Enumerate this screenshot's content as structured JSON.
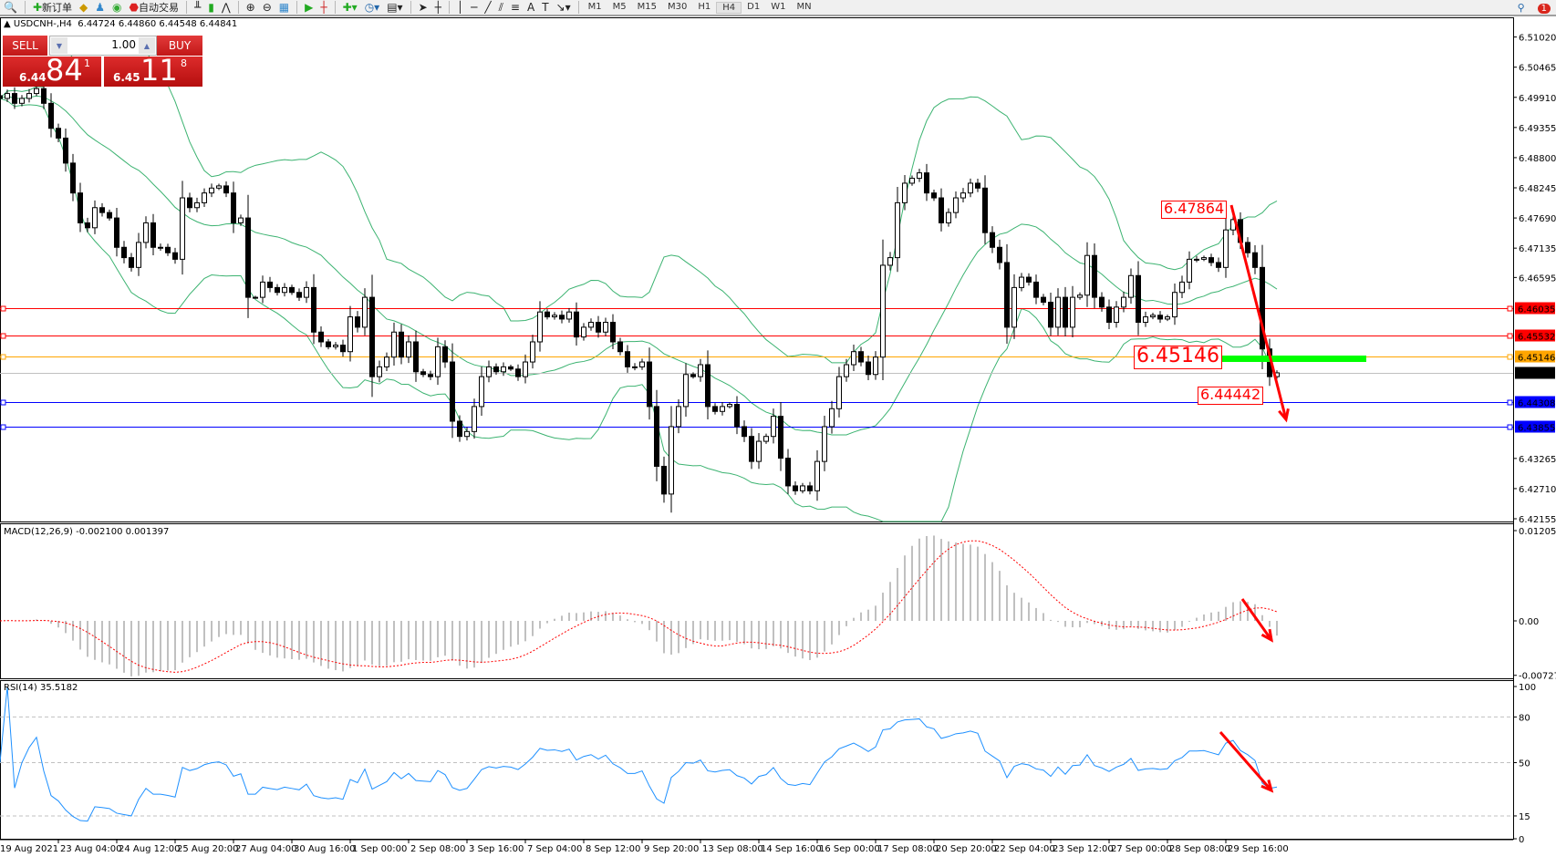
{
  "toolbar": {
    "new_order_label": "新订单",
    "autotrading_label": "自动交易",
    "timeframes": [
      "M1",
      "M5",
      "M15",
      "M30",
      "H1",
      "H4",
      "D1",
      "W1",
      "MN"
    ],
    "active_timeframe": "H4",
    "notification_count": "1"
  },
  "header": {
    "symbol": "USDCNH-,H4",
    "open": "6.44724",
    "high": "6.44860",
    "low": "6.44548",
    "close": "6.44841"
  },
  "trade_panel": {
    "sell_label": "SELL",
    "buy_label": "BUY",
    "lots": "1.00",
    "sell_price": {
      "prefix": "6.44",
      "big": "84",
      "sup": "1"
    },
    "buy_price": {
      "prefix": "6.45",
      "big": "11",
      "sup": "8"
    }
  },
  "price_axis": {
    "ticks": [
      "6.51020",
      "6.50465",
      "6.49910",
      "6.49355",
      "6.48800",
      "6.48245",
      "6.47690",
      "6.47135",
      "6.46595",
      "6.43265",
      "6.42710",
      "6.42155"
    ],
    "levels": [
      {
        "value": "6.46035",
        "color": "#ff0000"
      },
      {
        "value": "6.45532",
        "color": "#ff0000"
      },
      {
        "value": "6.45146",
        "color": "#ffa500"
      },
      {
        "value": "6.44841",
        "color": "#000000",
        "current": true
      },
      {
        "value": "6.44308",
        "color": "#0000ff"
      },
      {
        "value": "6.43855",
        "color": "#0000ff"
      }
    ]
  },
  "annotations": {
    "high_label": "6.47864",
    "support_label": "6.45146",
    "low_label": "6.44442"
  },
  "macd": {
    "title": "MACD(12,26,9) -0.002100 0.001397",
    "ticks": [
      "0.012053",
      "0.00",
      "-0.007272"
    ]
  },
  "rsi": {
    "title": "RSI(14) 35.5182",
    "ticks": [
      "100",
      "80",
      "50",
      "15",
      "0"
    ]
  },
  "time_axis": [
    "19 Aug 2021",
    "23 Aug 04:00",
    "24 Aug 12:00",
    "25 Aug 20:00",
    "27 Aug 04:00",
    "30 Aug 16:00",
    "1 Sep 00:00",
    "2 Sep 08:00",
    "3 Sep 16:00",
    "7 Sep 04:00",
    "8 Sep 12:00",
    "9 Sep 20:00",
    "13 Sep 08:00",
    "14 Sep 16:00",
    "16 Sep 00:00",
    "17 Sep 08:00",
    "20 Sep 20:00",
    "22 Sep 04:00",
    "23 Sep 12:00",
    "27 Sep 00:00",
    "28 Sep 08:00",
    "29 Sep 16:00"
  ],
  "colors": {
    "bollinger": "#3cb371",
    "macd_hist": "#c0c0c0",
    "macd_signal": "#ff0000",
    "rsi_line": "#1e90ff",
    "arrow": "#ff0000",
    "zone": "#00ff00"
  },
  "chart_data": {
    "type": "candlestick",
    "symbol": "USDCNH",
    "timeframe": "H4",
    "ylim": [
      6.42155,
      6.5102
    ],
    "indicators": [
      "Bollinger Bands",
      "MACD(12,26,9)",
      "RSI(14)"
    ],
    "closes": [
      6.4989,
      6.4998,
      6.498,
      6.4989,
      6.4998,
      6.5007,
      6.498,
      6.4934,
      6.4916,
      6.487,
      6.4815,
      6.476,
      6.4751,
      6.4788,
      6.4779,
      6.4769,
      6.4715,
      6.4696,
      6.4678,
      6.4724,
      6.476,
      6.4715,
      6.4715,
      6.4705,
      6.4693,
      6.4806,
      6.4788,
      6.4797,
      6.4815,
      6.4824,
      6.4828,
      6.4815,
      6.476,
      6.4769,
      6.4623,
      6.4623,
      6.4651,
      6.4641,
      6.4632,
      6.4641,
      6.4632,
      6.4623,
      6.4641,
      6.4559,
      6.4541,
      6.4532,
      6.4535,
      6.4523,
      6.4587,
      6.4568,
      6.4623,
      6.4477,
      6.4495,
      6.4513,
      6.4559,
      6.4513,
      6.4541,
      6.4486,
      6.4481,
      6.4477,
      6.4532,
      6.4504,
      6.4395,
      6.4367,
      6.4376,
      6.4422,
      6.4477,
      6.4495,
      6.4486,
      6.4495,
      6.4491,
      6.4477,
      6.4504,
      6.4541,
      6.4596,
      6.4587,
      6.459,
      6.4583,
      6.4596,
      6.455,
      6.4568,
      6.4577,
      6.4559,
      6.4577,
      6.4541,
      6.4523,
      6.4495,
      6.4495,
      6.4504,
      6.4422,
      6.4312,
      6.4261,
      6.4385,
      6.4422,
      6.4481,
      6.4477,
      6.4499,
      6.4422,
      6.4413,
      6.4422,
      6.4426,
      6.4385,
      6.4367,
      6.4321,
      6.4358,
      6.4367,
      6.4404,
      6.4327,
      6.4276,
      6.4267,
      6.4276,
      6.4267,
      6.4321,
      6.4385,
      6.4418,
      6.4477,
      6.4499,
      6.4523,
      6.4504,
      6.4481,
      6.4513,
      6.4682,
      6.4696,
      6.4797,
      6.4833,
      6.4842,
      6.4852,
      6.4815,
      6.4806,
      6.476,
      6.4779,
      6.4806,
      6.4815,
      6.4833,
      6.4824,
      6.4742,
      6.4715,
      6.4687,
      6.4568,
      6.4641,
      6.466,
      6.4651,
      6.4623,
      6.4614,
      6.4568,
      6.4623,
      6.4568,
      6.4623,
      6.4627,
      6.47,
      6.4623,
      6.4605,
      6.4577,
      6.4605,
      6.4623,
      6.4663,
      6.4577,
      6.4587,
      6.459,
      6.4583,
      6.4587,
      6.4632,
      6.4651,
      6.4693,
      6.4693,
      6.4696,
      6.4687,
      6.4678,
      6.4747,
      6.4766,
      6.4724,
      6.4705,
      6.4678,
      6.4528,
      6.4477,
      6.4484
    ]
  }
}
